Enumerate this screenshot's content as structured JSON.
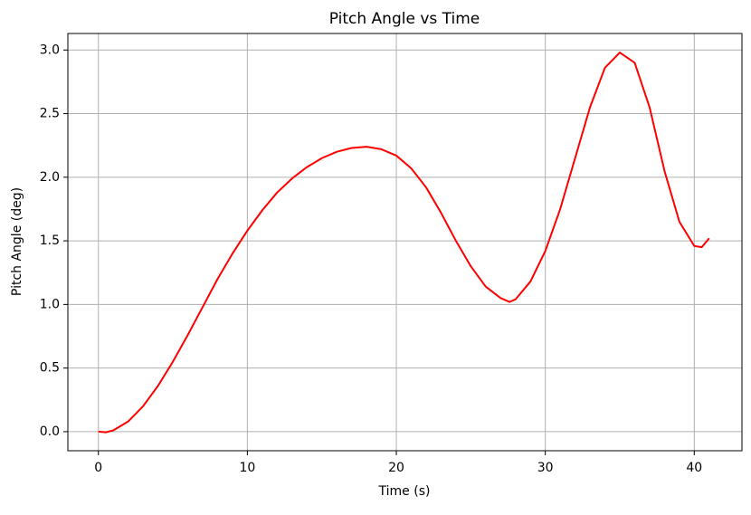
{
  "chart_data": {
    "type": "line",
    "title": "Pitch Angle vs Time",
    "xlabel": "Time (s)",
    "ylabel": "Pitch Angle (deg)",
    "x": [
      0,
      0.5,
      1,
      2,
      3,
      4,
      5,
      6,
      7,
      8,
      9,
      10,
      11,
      12,
      13,
      14,
      15,
      16,
      17,
      18,
      19,
      20,
      21,
      22,
      23,
      24,
      25,
      26,
      27,
      27.6,
      28,
      29,
      30,
      31,
      32,
      33,
      34,
      35,
      36,
      37,
      38,
      39,
      40,
      40.5,
      41
    ],
    "series": [
      {
        "name": "Pitch Angle",
        "color": "#ff0000",
        "values": [
          0,
          -0.005,
          0.01,
          0.08,
          0.2,
          0.36,
          0.55,
          0.76,
          0.98,
          1.2,
          1.4,
          1.58,
          1.74,
          1.88,
          1.99,
          2.08,
          2.15,
          2.2,
          2.23,
          2.24,
          2.22,
          2.17,
          2.07,
          1.92,
          1.72,
          1.5,
          1.3,
          1.14,
          1.05,
          1.02,
          1.04,
          1.18,
          1.42,
          1.75,
          2.15,
          2.55,
          2.86,
          2.98,
          2.9,
          2.55,
          2.05,
          1.65,
          1.46,
          1.45,
          1.52
        ]
      }
    ],
    "xlim": [
      -2.05,
      43.2
    ],
    "ylim": [
      -0.15,
      3.13
    ],
    "xticks": [
      0,
      10,
      20,
      30,
      40
    ],
    "yticks": [
      {
        "value": 0,
        "label": "0.0"
      },
      0.5,
      {
        "value": 1,
        "label": "1.0"
      },
      1.5,
      {
        "value": 2,
        "label": "2.0"
      },
      2.5,
      {
        "value": 3,
        "label": "3.0"
      }
    ],
    "grid": true
  }
}
